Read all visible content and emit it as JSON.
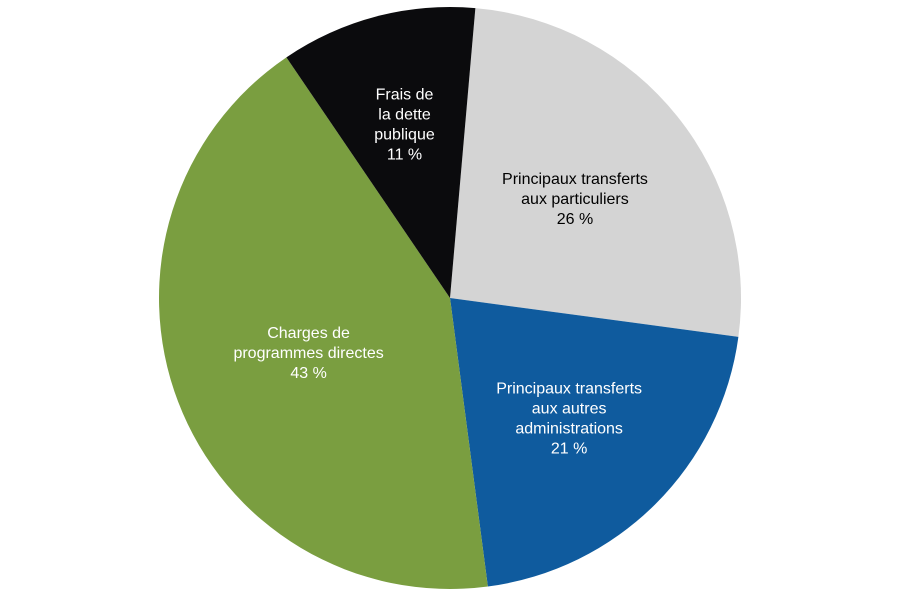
{
  "chart_data": {
    "type": "pie",
    "title": "",
    "slices": [
      {
        "label_lines": [
          "Principaux transferts",
          "aux particuliers"
        ],
        "pct_label": "26 %",
        "value": 26,
        "color": "#d4d4d4",
        "text_color": "#000000"
      },
      {
        "label_lines": [
          "Principaux transferts",
          "aux autres",
          "administrations"
        ],
        "pct_label": "21 %",
        "value": 21,
        "color": "#0f5b9e",
        "text_color": "#ffffff"
      },
      {
        "label_lines": [
          "Charges de",
          "programmes directes"
        ],
        "pct_label": "43 %",
        "value": 43,
        "color": "#7a9e40",
        "text_color": "#ffffff"
      },
      {
        "label_lines": [
          "Frais de",
          "la dette",
          "publique"
        ],
        "pct_label": "11 %",
        "value": 11,
        "color": "#0b0b0d",
        "text_color": "#ffffff"
      }
    ]
  }
}
